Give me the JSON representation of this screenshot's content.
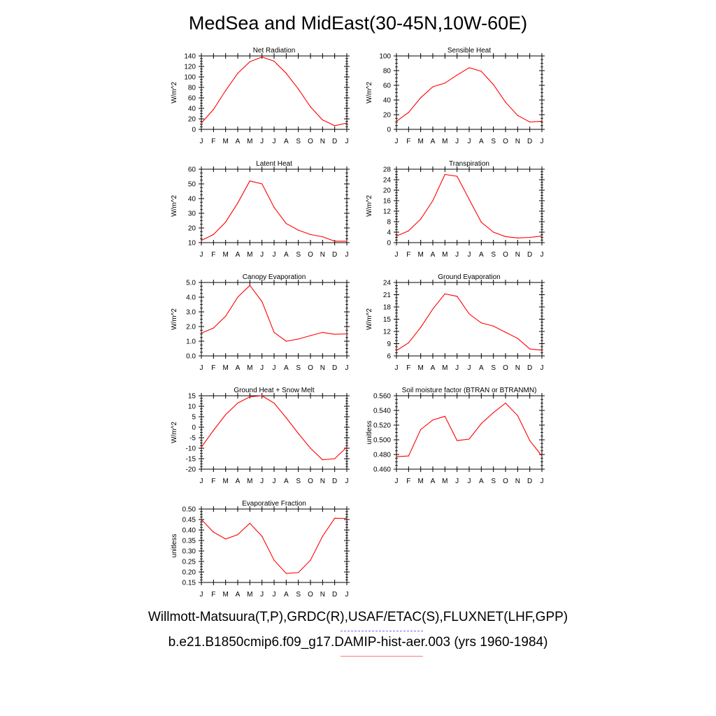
{
  "title": "MedSea and MidEast(30-45N,10W-60E)",
  "legend": {
    "line1": "Willmott-Matsuura(T,P),GRDC(R),USAF/ETAC(S),FLUXNET(LHF,GPP)",
    "line1_style": "dashed",
    "line1_color": "#6b6bff",
    "line2": "b.e21.B1850cmip6.f09_g17.DAMIP-hist-aer.003 (yrs 1960-1984)",
    "line2_color": "#ff0000"
  },
  "chart_data": [
    {
      "type": "line",
      "title": "Net Radiation",
      "ylabel": "W/m^2",
      "categories": [
        "J",
        "F",
        "M",
        "A",
        "M",
        "J",
        "J",
        "A",
        "S",
        "O",
        "N",
        "D",
        "J"
      ],
      "ylim": [
        0,
        140
      ],
      "yticks": [
        "0",
        "20",
        "40",
        "60",
        "80",
        "100",
        "120",
        "140"
      ],
      "series": [
        {
          "color": "#ff0000",
          "values": [
            12,
            38,
            74,
            107,
            129,
            138,
            130,
            107,
            77,
            43,
            18,
            7,
            12
          ]
        }
      ]
    },
    {
      "type": "line",
      "title": "Sensible Heat",
      "ylabel": "W/m^2",
      "categories": [
        "J",
        "F",
        "M",
        "A",
        "M",
        "J",
        "J",
        "A",
        "S",
        "O",
        "N",
        "D",
        "J"
      ],
      "ylim": [
        0,
        100
      ],
      "yticks": [
        "0",
        "20",
        "40",
        "60",
        "80",
        "100"
      ],
      "series": [
        {
          "color": "#ff0000",
          "values": [
            11,
            23,
            43,
            58,
            63,
            74,
            84,
            79,
            61,
            37,
            19,
            10,
            11
          ]
        }
      ]
    },
    {
      "type": "line",
      "title": "Latent Heat",
      "ylabel": "W/m^2",
      "categories": [
        "J",
        "F",
        "M",
        "A",
        "M",
        "J",
        "J",
        "A",
        "S",
        "O",
        "N",
        "D",
        "J"
      ],
      "ylim": [
        10,
        60
      ],
      "yticks": [
        "10",
        "20",
        "30",
        "40",
        "50",
        "60"
      ],
      "series": [
        {
          "color": "#ff0000",
          "values": [
            11.5,
            15.5,
            24,
            37,
            52,
            50,
            34,
            23,
            18.5,
            15.5,
            14,
            11,
            11
          ]
        }
      ]
    },
    {
      "type": "line",
      "title": "Transpiration",
      "ylabel": "W/m^2",
      "categories": [
        "J",
        "F",
        "M",
        "A",
        "M",
        "J",
        "J",
        "A",
        "S",
        "O",
        "N",
        "D",
        "J"
      ],
      "ylim": [
        0,
        28
      ],
      "yticks": [
        "0",
        "4",
        "8",
        "12",
        "16",
        "20",
        "24",
        "28"
      ],
      "series": [
        {
          "color": "#ff0000",
          "values": [
            2.5,
            4.5,
            9,
            16,
            26,
            25.3,
            16.5,
            7.8,
            4,
            2.3,
            1.8,
            2,
            2.5
          ]
        }
      ]
    },
    {
      "type": "line",
      "title": "Canopy Evaporation",
      "ylabel": "W/m^2",
      "categories": [
        "J",
        "F",
        "M",
        "A",
        "M",
        "J",
        "J",
        "A",
        "S",
        "O",
        "N",
        "D",
        "J"
      ],
      "ylim": [
        0,
        5
      ],
      "yticks": [
        "0.0",
        "1.0",
        "2.0",
        "3.0",
        "4.0",
        "5.0"
      ],
      "series": [
        {
          "color": "#ff0000",
          "values": [
            1.55,
            1.9,
            2.7,
            4.0,
            4.8,
            3.7,
            1.6,
            1.0,
            1.15,
            1.38,
            1.6,
            1.47,
            1.5
          ]
        }
      ]
    },
    {
      "type": "line",
      "title": "Ground Evaporation",
      "ylabel": "W/m^2",
      "categories": [
        "J",
        "F",
        "M",
        "A",
        "M",
        "J",
        "J",
        "A",
        "S",
        "O",
        "N",
        "D",
        "J"
      ],
      "ylim": [
        6,
        24
      ],
      "yticks": [
        "6",
        "9",
        "12",
        "15",
        "18",
        "21",
        "24"
      ],
      "series": [
        {
          "color": "#ff0000",
          "values": [
            7.3,
            9.2,
            13,
            17.5,
            21.2,
            20.6,
            16.3,
            14.1,
            13.3,
            11.8,
            10.3,
            7.7,
            7.4
          ]
        }
      ]
    },
    {
      "type": "line",
      "title": "Ground Heat + Snow Melt",
      "ylabel": "W/m^2",
      "categories": [
        "J",
        "F",
        "M",
        "A",
        "M",
        "J",
        "J",
        "A",
        "S",
        "O",
        "N",
        "D",
        "J"
      ],
      "ylim": [
        -20,
        15
      ],
      "yticks": [
        "-20",
        "-15",
        "-10",
        "-5",
        "0",
        "5",
        "10",
        "15"
      ],
      "series": [
        {
          "color": "#ff0000",
          "values": [
            -9.5,
            -1.5,
            6,
            11.5,
            14.5,
            15,
            11.5,
            4.5,
            -3,
            -10,
            -15.5,
            -15,
            -9.5
          ]
        }
      ]
    },
    {
      "type": "line",
      "title": "Soil moisture factor (BTRAN or BTRANMN)",
      "ylabel": "unitless",
      "categories": [
        "J",
        "F",
        "M",
        "A",
        "M",
        "J",
        "J",
        "A",
        "S",
        "O",
        "N",
        "D",
        "J"
      ],
      "ylim": [
        0.46,
        0.56
      ],
      "yticks": [
        "0.460",
        "0.480",
        "0.500",
        "0.520",
        "0.540",
        "0.560"
      ],
      "series": [
        {
          "color": "#ff0000",
          "values": [
            0.477,
            0.478,
            0.514,
            0.527,
            0.532,
            0.499,
            0.501,
            0.522,
            0.537,
            0.55,
            0.533,
            0.499,
            0.478
          ]
        }
      ]
    },
    {
      "type": "line",
      "title": "Evaporative Fraction",
      "ylabel": "unitless",
      "categories": [
        "J",
        "F",
        "M",
        "A",
        "M",
        "J",
        "J",
        "A",
        "S",
        "O",
        "N",
        "D",
        "J"
      ],
      "ylim": [
        0.15,
        0.5
      ],
      "yticks": [
        "0.15",
        "0.20",
        "0.25",
        "0.30",
        "0.35",
        "0.40",
        "0.45",
        "0.50"
      ],
      "series": [
        {
          "color": "#ff0000",
          "values": [
            0.45,
            0.39,
            0.357,
            0.378,
            0.432,
            0.37,
            0.256,
            0.193,
            0.197,
            0.256,
            0.37,
            0.456,
            0.455
          ]
        }
      ]
    }
  ]
}
